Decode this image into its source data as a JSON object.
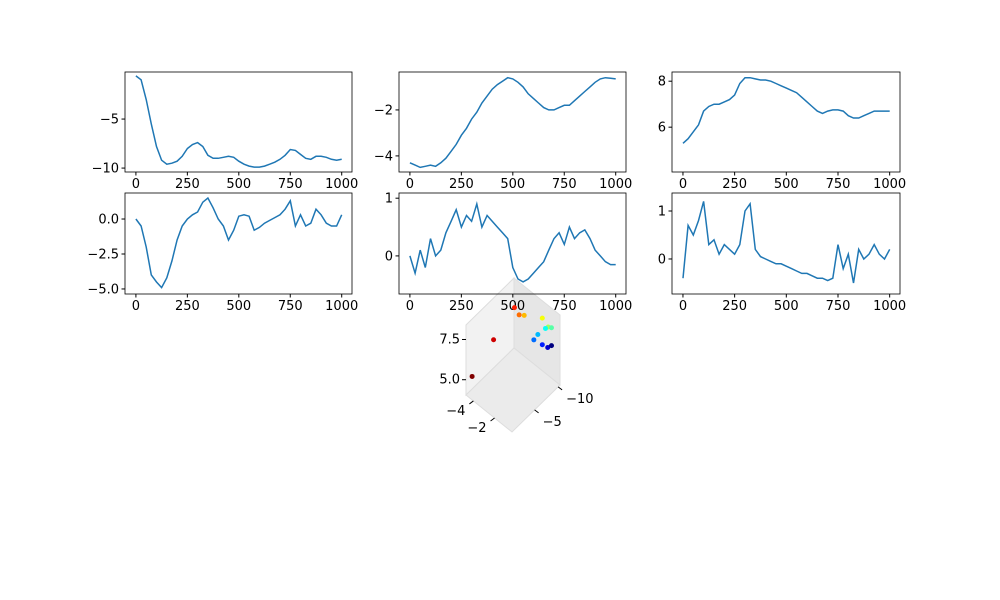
{
  "chart_data": [
    {
      "type": "line",
      "color": "#1f77b4",
      "x": [
        0,
        25,
        50,
        75,
        100,
        125,
        150,
        175,
        200,
        225,
        250,
        275,
        300,
        325,
        350,
        375,
        400,
        425,
        450,
        475,
        500,
        525,
        550,
        575,
        600,
        625,
        650,
        675,
        700,
        725,
        750,
        775,
        800,
        825,
        850,
        875,
        900,
        925,
        950,
        975,
        1000
      ],
      "values": [
        -0.6,
        -1,
        -3,
        -5.5,
        -7.8,
        -9.2,
        -9.6,
        -9.5,
        -9.3,
        -8.8,
        -8,
        -7.6,
        -7.4,
        -7.8,
        -8.7,
        -9,
        -9,
        -8.9,
        -8.8,
        -8.9,
        -9.3,
        -9.6,
        -9.8,
        -9.9,
        -9.9,
        -9.8,
        -9.6,
        -9.4,
        -9.1,
        -8.7,
        -8.1,
        -8.2,
        -8.6,
        -9.0,
        -9.1,
        -8.8,
        -8.8,
        -8.9,
        -9.1,
        -9.2,
        -9.1
      ],
      "xlim": [
        -53,
        1050
      ],
      "ylim": [
        -10.4,
        -0.2
      ],
      "xticks": [
        0,
        250,
        500,
        750,
        1000
      ],
      "yticks": [
        {
          "value": -10,
          "label": "−10"
        },
        {
          "value": -5,
          "label": "−5"
        }
      ]
    },
    {
      "type": "line",
      "color": "#1f77b4",
      "x": [
        0,
        25,
        50,
        75,
        100,
        125,
        150,
        175,
        200,
        225,
        250,
        275,
        300,
        325,
        350,
        375,
        400,
        425,
        450,
        475,
        500,
        525,
        550,
        575,
        600,
        625,
        650,
        675,
        700,
        725,
        750,
        775,
        800,
        825,
        850,
        875,
        900,
        925,
        950,
        975,
        1000
      ],
      "values": [
        -4.3,
        -4.4,
        -4.5,
        -4.45,
        -4.4,
        -4.45,
        -4.3,
        -4.1,
        -3.8,
        -3.5,
        -3.1,
        -2.8,
        -2.4,
        -2.1,
        -1.7,
        -1.4,
        -1.1,
        -0.9,
        -0.75,
        -0.6,
        -0.65,
        -0.8,
        -1.0,
        -1.3,
        -1.5,
        -1.7,
        -1.9,
        -2.0,
        -2.0,
        -1.9,
        -1.8,
        -1.8,
        -1.6,
        -1.4,
        -1.2,
        -1.0,
        -0.8,
        -0.65,
        -0.6,
        -0.62,
        -0.65
      ],
      "xlim": [
        -53,
        1050
      ],
      "ylim": [
        -4.7,
        -0.35
      ],
      "xticks": [
        0,
        250,
        500,
        750,
        1000
      ],
      "yticks": [
        {
          "value": -4,
          "label": "−4"
        },
        {
          "value": -2,
          "label": "−2"
        }
      ]
    },
    {
      "type": "line",
      "color": "#1f77b4",
      "x": [
        0,
        25,
        50,
        75,
        100,
        125,
        150,
        175,
        200,
        225,
        250,
        275,
        300,
        325,
        350,
        375,
        400,
        425,
        450,
        475,
        500,
        525,
        550,
        575,
        600,
        625,
        650,
        675,
        700,
        725,
        750,
        775,
        800,
        825,
        850,
        875,
        900,
        925,
        950,
        975,
        1000
      ],
      "values": [
        5.3,
        5.5,
        5.8,
        6.1,
        6.7,
        6.9,
        7.0,
        7.0,
        7.1,
        7.2,
        7.4,
        7.9,
        8.15,
        8.15,
        8.1,
        8.05,
        8.05,
        8.0,
        7.9,
        7.8,
        7.7,
        7.6,
        7.5,
        7.3,
        7.1,
        6.9,
        6.7,
        6.6,
        6.7,
        6.75,
        6.75,
        6.7,
        6.5,
        6.4,
        6.4,
        6.5,
        6.6,
        6.7,
        6.7,
        6.7,
        6.7
      ],
      "xlim": [
        -53,
        1050
      ],
      "ylim": [
        4.05,
        8.4
      ],
      "xticks": [
        0,
        250,
        500,
        750,
        1000
      ],
      "yticks": [
        6,
        8
      ]
    },
    {
      "type": "line",
      "color": "#1f77b4",
      "x": [
        0,
        25,
        50,
        75,
        100,
        125,
        150,
        175,
        200,
        225,
        250,
        275,
        300,
        325,
        350,
        375,
        400,
        425,
        450,
        475,
        500,
        525,
        550,
        575,
        600,
        625,
        650,
        675,
        700,
        725,
        750,
        775,
        800,
        825,
        850,
        875,
        900,
        925,
        950,
        975,
        1000
      ],
      "values": [
        0,
        -0.5,
        -2,
        -4,
        -4.5,
        -4.9,
        -4.2,
        -3,
        -1.5,
        -0.5,
        0,
        0.3,
        0.5,
        1.2,
        1.5,
        0.8,
        0,
        -0.5,
        -1.5,
        -0.8,
        0.2,
        0.3,
        0.2,
        -0.8,
        -0.6,
        -0.3,
        -0.1,
        0.1,
        0.3,
        0.7,
        1.3,
        -0.5,
        0.3,
        -0.5,
        -0.3,
        0.7,
        0.3,
        -0.3,
        -0.5,
        -0.5,
        0.3
      ],
      "xlim": [
        -53,
        1050
      ],
      "ylim": [
        -5.36,
        1.86
      ],
      "xticks": [
        0,
        250,
        500,
        750,
        1000
      ],
      "yticks": [
        {
          "value": -5,
          "label": "−5.0"
        },
        {
          "value": -2.5,
          "label": "−2.5"
        },
        {
          "value": 0,
          "label": "0.0"
        }
      ]
    },
    {
      "type": "line",
      "color": "#1f77b4",
      "x": [
        0,
        25,
        50,
        75,
        100,
        125,
        150,
        175,
        200,
        225,
        250,
        275,
        300,
        325,
        350,
        375,
        400,
        425,
        450,
        475,
        500,
        525,
        550,
        575,
        600,
        625,
        650,
        675,
        700,
        725,
        750,
        775,
        800,
        825,
        850,
        875,
        900,
        925,
        950,
        975,
        1000
      ],
      "values": [
        0,
        -0.3,
        0.1,
        -0.2,
        0.3,
        0,
        0.1,
        0.4,
        0.6,
        0.8,
        0.5,
        0.7,
        0.6,
        0.9,
        0.5,
        0.7,
        0.6,
        0.5,
        0.4,
        0.3,
        -0.2,
        -0.4,
        -0.45,
        -0.4,
        -0.3,
        -0.2,
        -0.1,
        0.1,
        0.3,
        0.4,
        0.2,
        0.5,
        0.3,
        0.4,
        0.45,
        0.3,
        0.1,
        0,
        -0.1,
        -0.15,
        -0.15
      ],
      "xlim": [
        -53,
        1050
      ],
      "ylim": [
        -0.66,
        1.09
      ],
      "xticks": [
        0,
        250,
        500,
        750,
        1000
      ],
      "yticks": [
        0,
        1
      ]
    },
    {
      "type": "line",
      "color": "#1f77b4",
      "x": [
        0,
        25,
        50,
        75,
        100,
        125,
        150,
        175,
        200,
        225,
        250,
        275,
        300,
        325,
        350,
        375,
        400,
        425,
        450,
        475,
        500,
        525,
        550,
        575,
        600,
        625,
        650,
        675,
        700,
        725,
        750,
        775,
        800,
        825,
        850,
        875,
        900,
        925,
        950,
        975,
        1000
      ],
      "values": [
        -0.4,
        0.7,
        0.5,
        0.8,
        1.2,
        0.3,
        0.4,
        0.1,
        0.3,
        0.2,
        0.1,
        0.3,
        1.0,
        1.15,
        0.2,
        0.05,
        0,
        -0.05,
        -0.1,
        -0.1,
        -0.15,
        -0.2,
        -0.25,
        -0.3,
        -0.3,
        -0.35,
        -0.4,
        -0.4,
        -0.45,
        -0.4,
        0.3,
        -0.2,
        0.1,
        -0.5,
        0.2,
        0,
        0.1,
        0.3,
        0.1,
        0,
        0.2
      ],
      "xlim": [
        -53,
        1050
      ],
      "ylim": [
        -0.73,
        1.375
      ],
      "xticks": [
        0,
        250,
        500,
        750,
        1000
      ],
      "yticks": [
        0,
        1
      ]
    },
    {
      "type": "scatter3d",
      "colormap": "jet_r",
      "x": [
        -4.3,
        -4.45,
        -4.3,
        -3.5,
        -2.4,
        -1.4,
        -0.75,
        -0.8,
        -1.5,
        -2.0,
        -1.8,
        -1.4,
        -0.8,
        -0.62
      ],
      "y": [
        -0.6,
        -5.5,
        -9.6,
        -8.8,
        -7.4,
        -9,
        -8.8,
        -9.6,
        -9.9,
        -9.4,
        -8.1,
        -9.0,
        -8.8,
        -9.2
      ],
      "z": [
        5.3,
        6.1,
        7.0,
        7.2,
        8.15,
        8.05,
        7.9,
        7.6,
        7.1,
        6.6,
        6.75,
        6.4,
        6.6,
        6.7
      ],
      "xlim": [
        -4.7,
        -0.35
      ],
      "ylim": [
        -10.4,
        -0.2
      ],
      "zlim": [
        4.05,
        8.4
      ],
      "xticks": [
        {
          "value": -4,
          "label": "−4"
        },
        {
          "value": -2,
          "label": "−2"
        }
      ],
      "yticks": [
        {
          "value": -10,
          "label": "−10"
        },
        {
          "value": -5,
          "label": "−5"
        }
      ],
      "zticks": [
        {
          "value": 5,
          "label": "5.0"
        },
        7.5
      ]
    }
  ]
}
